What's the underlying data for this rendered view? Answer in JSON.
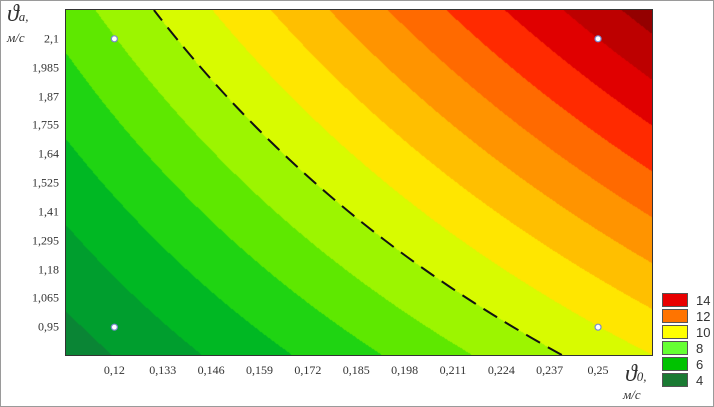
{
  "chart_data": {
    "type": "heatmap",
    "subtype": "filled-contour",
    "x_axis": {
      "symbol": "ϑ",
      "subscript": "0,",
      "unit": "м/с",
      "ticks": [
        "0,12",
        "0,133",
        "0,146",
        "0,159",
        "0,172",
        "0,185",
        "0,198",
        "0,211",
        "0,224",
        "0,237",
        "0,25"
      ],
      "tick_values": [
        0.12,
        0.133,
        0.146,
        0.159,
        0.172,
        0.185,
        0.198,
        0.211,
        0.224,
        0.237,
        0.25
      ],
      "range": [
        0.107,
        0.2645
      ]
    },
    "y_axis": {
      "symbol": "ϑ",
      "subscript": "а,",
      "unit": "м/с",
      "ticks": [
        "2,1",
        "1,985",
        "1,87",
        "1,755",
        "1,64",
        "1,525",
        "1,41",
        "1,295",
        "1,18",
        "1,065",
        "0,95"
      ],
      "tick_values": [
        2.1,
        1.985,
        1.87,
        1.755,
        1.64,
        1.525,
        1.41,
        1.295,
        1.18,
        1.065,
        0.95
      ],
      "range": [
        0.839,
        2.215
      ]
    },
    "surface_corner_values": {
      "x_min_y_min": 2.5,
      "x_max_y_min": 9,
      "x_min_y_max": 6.5,
      "x_max_y_max": 16.5
    },
    "contour_step": 1,
    "band_colors": [
      "#0b6b3a",
      "#0a8535",
      "#009e2e",
      "#00b823",
      "#1fd412",
      "#5ee800",
      "#9cf500",
      "#d8fb00",
      "#ffe600",
      "#ffbf00",
      "#ff9400",
      "#ff6a00",
      "#ff2a00",
      "#e00000",
      "#bd0000",
      "#940000"
    ],
    "dashed_contour_level": 8,
    "design_points": [
      {
        "x": 0.12,
        "y": 2.1
      },
      {
        "x": 0.25,
        "y": 2.1
      },
      {
        "x": 0.12,
        "y": 0.95
      },
      {
        "x": 0.25,
        "y": 0.95
      }
    ],
    "legend": {
      "placement": "bottom-right",
      "items": [
        {
          "label": "14",
          "color": "#e80000"
        },
        {
          "label": "12",
          "color": "#ff7400"
        },
        {
          "label": "10",
          "color": "#ffff00"
        },
        {
          "label": "8",
          "color": "#66ff33"
        },
        {
          "label": "6",
          "color": "#00c200"
        },
        {
          "label": "4",
          "color": "#1a7a32"
        }
      ]
    },
    "grid": false
  }
}
